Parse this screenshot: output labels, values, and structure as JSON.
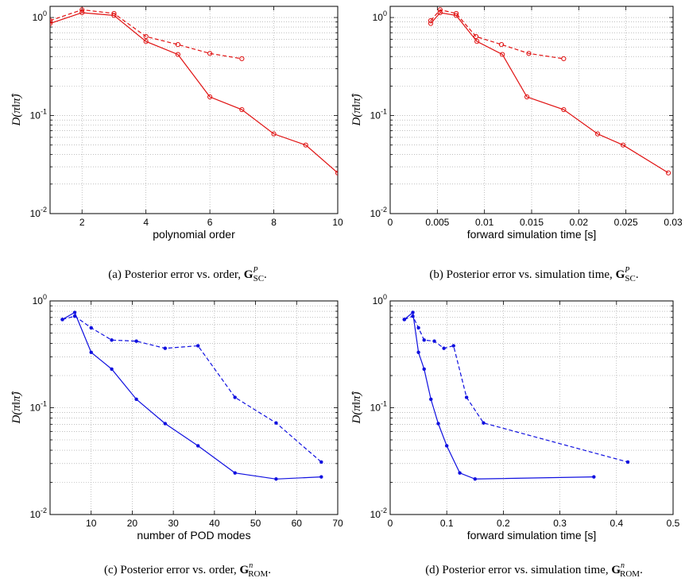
{
  "chart_data": [
    {
      "id": "a",
      "type": "line",
      "xlabel": "polynomial order",
      "ylabel": "D(π‖π̂)",
      "xlim": [
        1,
        10
      ],
      "xticks": [
        2,
        4,
        6,
        8,
        10
      ],
      "ylim": [
        0.01,
        1.3
      ],
      "ytick_exponents": [
        -2,
        -1,
        0
      ],
      "ylog": true,
      "grid": true,
      "color": "#e01010",
      "marker": "circle",
      "series": [
        {
          "style": "solid",
          "x": [
            1,
            2,
            3,
            4,
            5,
            6,
            7,
            8,
            9,
            10
          ],
          "y": [
            0.87,
            1.12,
            1.05,
            0.57,
            0.42,
            0.155,
            0.115,
            0.065,
            0.05,
            0.026
          ]
        },
        {
          "style": "dashed",
          "x": [
            1,
            2,
            3,
            4,
            5,
            6,
            7
          ],
          "y": [
            0.93,
            1.2,
            1.1,
            0.64,
            0.53,
            0.43,
            0.38
          ]
        }
      ],
      "caption": {
        "prefix": "(a)  Posterior error vs. order, ",
        "sym": "G",
        "sup": "P",
        "sub": "SC"
      }
    },
    {
      "id": "b",
      "type": "line",
      "xlabel": "forward simulation time [s]",
      "ylabel": "D(π‖π̂)",
      "xlim": [
        0,
        0.03
      ],
      "xticks": [
        0,
        0.005,
        0.01,
        0.015,
        0.02,
        0.025,
        0.03
      ],
      "ylim": [
        0.01,
        1.3
      ],
      "ytick_exponents": [
        -2,
        -1,
        0
      ],
      "ylog": true,
      "grid": true,
      "color": "#e01010",
      "marker": "circle",
      "series": [
        {
          "style": "solid",
          "x": [
            0.0043,
            0.0053,
            0.007,
            0.0092,
            0.0119,
            0.0145,
            0.0184,
            0.022,
            0.0247,
            0.0295
          ],
          "y": [
            0.87,
            1.12,
            1.05,
            0.57,
            0.42,
            0.155,
            0.115,
            0.065,
            0.05,
            0.026
          ]
        },
        {
          "style": "dashed",
          "x": [
            0.0043,
            0.0053,
            0.007,
            0.0091,
            0.0118,
            0.0147,
            0.0184
          ],
          "y": [
            0.93,
            1.2,
            1.1,
            0.64,
            0.53,
            0.43,
            0.38
          ]
        }
      ],
      "caption": {
        "prefix": "(b)  Posterior error vs. simulation time, ",
        "sym": "G",
        "sup": "P",
        "sub": "SC"
      }
    },
    {
      "id": "c",
      "type": "line",
      "xlabel": "number of POD modes",
      "ylabel": "D(π‖π̂)",
      "xlim": [
        0,
        70
      ],
      "xticks": [
        10,
        20,
        30,
        40,
        50,
        60,
        70
      ],
      "ylim": [
        0.01,
        1
      ],
      "ytick_exponents": [
        -2,
        -1,
        0
      ],
      "ylog": true,
      "grid": true,
      "color": "#1010e0",
      "marker": "dot",
      "series": [
        {
          "style": "solid",
          "x": [
            3,
            6,
            10,
            15,
            21,
            28,
            36,
            45,
            55,
            66
          ],
          "y": [
            0.67,
            0.78,
            0.33,
            0.23,
            0.12,
            0.071,
            0.044,
            0.0245,
            0.0215,
            0.0225
          ]
        },
        {
          "style": "dashed",
          "x": [
            3,
            6,
            10,
            15,
            21,
            28,
            36,
            45,
            55,
            66
          ],
          "y": [
            0.67,
            0.72,
            0.56,
            0.43,
            0.42,
            0.36,
            0.38,
            0.125,
            0.072,
            0.031
          ]
        }
      ],
      "caption": {
        "prefix": "(c)  Posterior error vs. order, ",
        "sym": "G",
        "sup": "n",
        "sub": "ROM"
      }
    },
    {
      "id": "d",
      "type": "line",
      "xlabel": "forward simulation time [s]",
      "ylabel": "D(π‖π̂)",
      "xlim": [
        0,
        0.5
      ],
      "xticks": [
        0,
        0.1,
        0.2,
        0.3,
        0.4,
        0.5
      ],
      "ylim": [
        0.01,
        1
      ],
      "ytick_exponents": [
        -2,
        -1,
        0
      ],
      "ylog": true,
      "grid": true,
      "color": "#1010e0",
      "marker": "dot",
      "series": [
        {
          "style": "solid",
          "x": [
            0.025,
            0.04,
            0.05,
            0.06,
            0.072,
            0.085,
            0.1,
            0.123,
            0.15,
            0.36
          ],
          "y": [
            0.67,
            0.78,
            0.33,
            0.23,
            0.12,
            0.071,
            0.044,
            0.0245,
            0.0215,
            0.0225
          ]
        },
        {
          "style": "dashed",
          "x": [
            0.025,
            0.04,
            0.05,
            0.06,
            0.078,
            0.095,
            0.112,
            0.135,
            0.165,
            0.42
          ],
          "y": [
            0.67,
            0.72,
            0.56,
            0.43,
            0.42,
            0.36,
            0.38,
            0.125,
            0.072,
            0.031
          ]
        }
      ],
      "caption": {
        "prefix": "(d)  Posterior error vs. simulation time, ",
        "sym": "G",
        "sup": "n",
        "sub": "ROM"
      }
    }
  ]
}
